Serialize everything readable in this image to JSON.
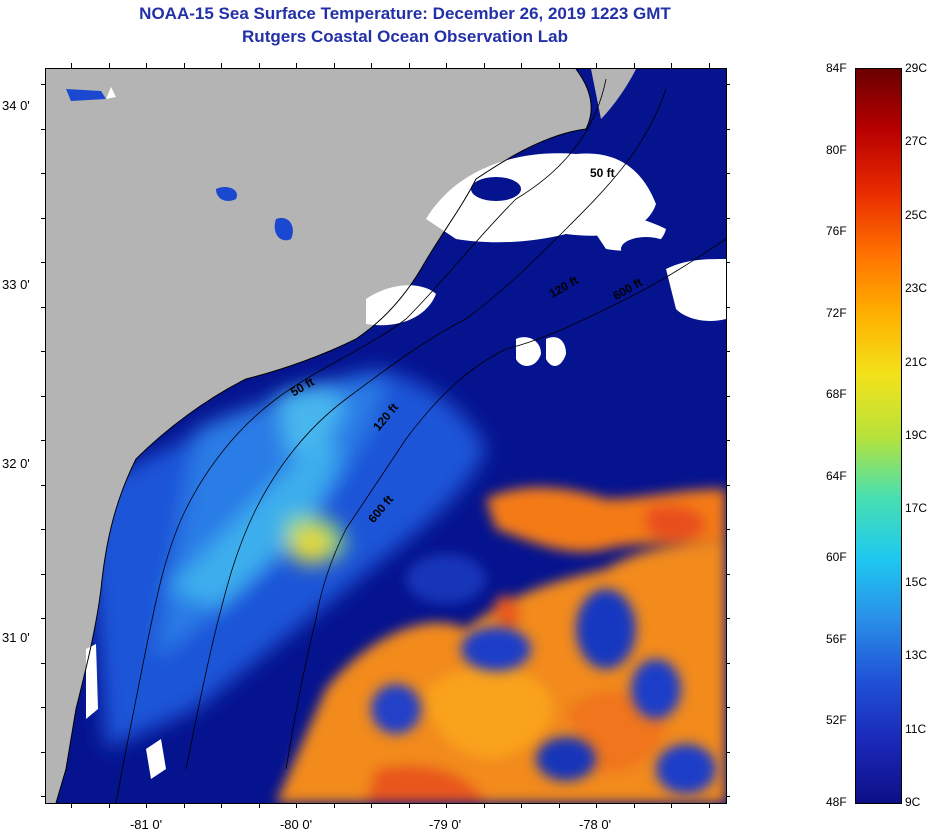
{
  "title": {
    "line1": "NOAA-15 Sea Surface Temperature:  December 26, 2019 1223 GMT",
    "line2": "Rutgers Coastal Ocean Observation Lab"
  },
  "map": {
    "latitude_labels": [
      "34 0'",
      "33 0'",
      "32 0'",
      "31 0'"
    ],
    "longitude_labels": [
      "-81 0'",
      "-80 0'",
      "-79 0'",
      "-78 0'"
    ],
    "isobath_labels": [
      "50 ft",
      "120 ft",
      "600 ft",
      "50 ft",
      "120 ft",
      "600 ft"
    ],
    "colors": {
      "land": "#b4b4b4",
      "cloud": "#ffffff",
      "ocean_cold": "#06138f"
    }
  },
  "colorbar": {
    "fahrenheit_labels": [
      "84F",
      "80F",
      "76F",
      "72F",
      "68F",
      "64F",
      "60F",
      "56F",
      "52F",
      "48F"
    ],
    "celsius_labels": [
      "29C",
      "27C",
      "25C",
      "23C",
      "21C",
      "19C",
      "17C",
      "15C",
      "13C",
      "11C",
      "9C"
    ],
    "gradient": [
      "#6b0000",
      "#b80000",
      "#e82a00",
      "#ff7000",
      "#ffb000",
      "#f3e21a",
      "#b8e23a",
      "#48e0b0",
      "#1ec8f0",
      "#2a8fe8",
      "#1f52d6",
      "#1a28b8",
      "#0d0f86"
    ]
  }
}
